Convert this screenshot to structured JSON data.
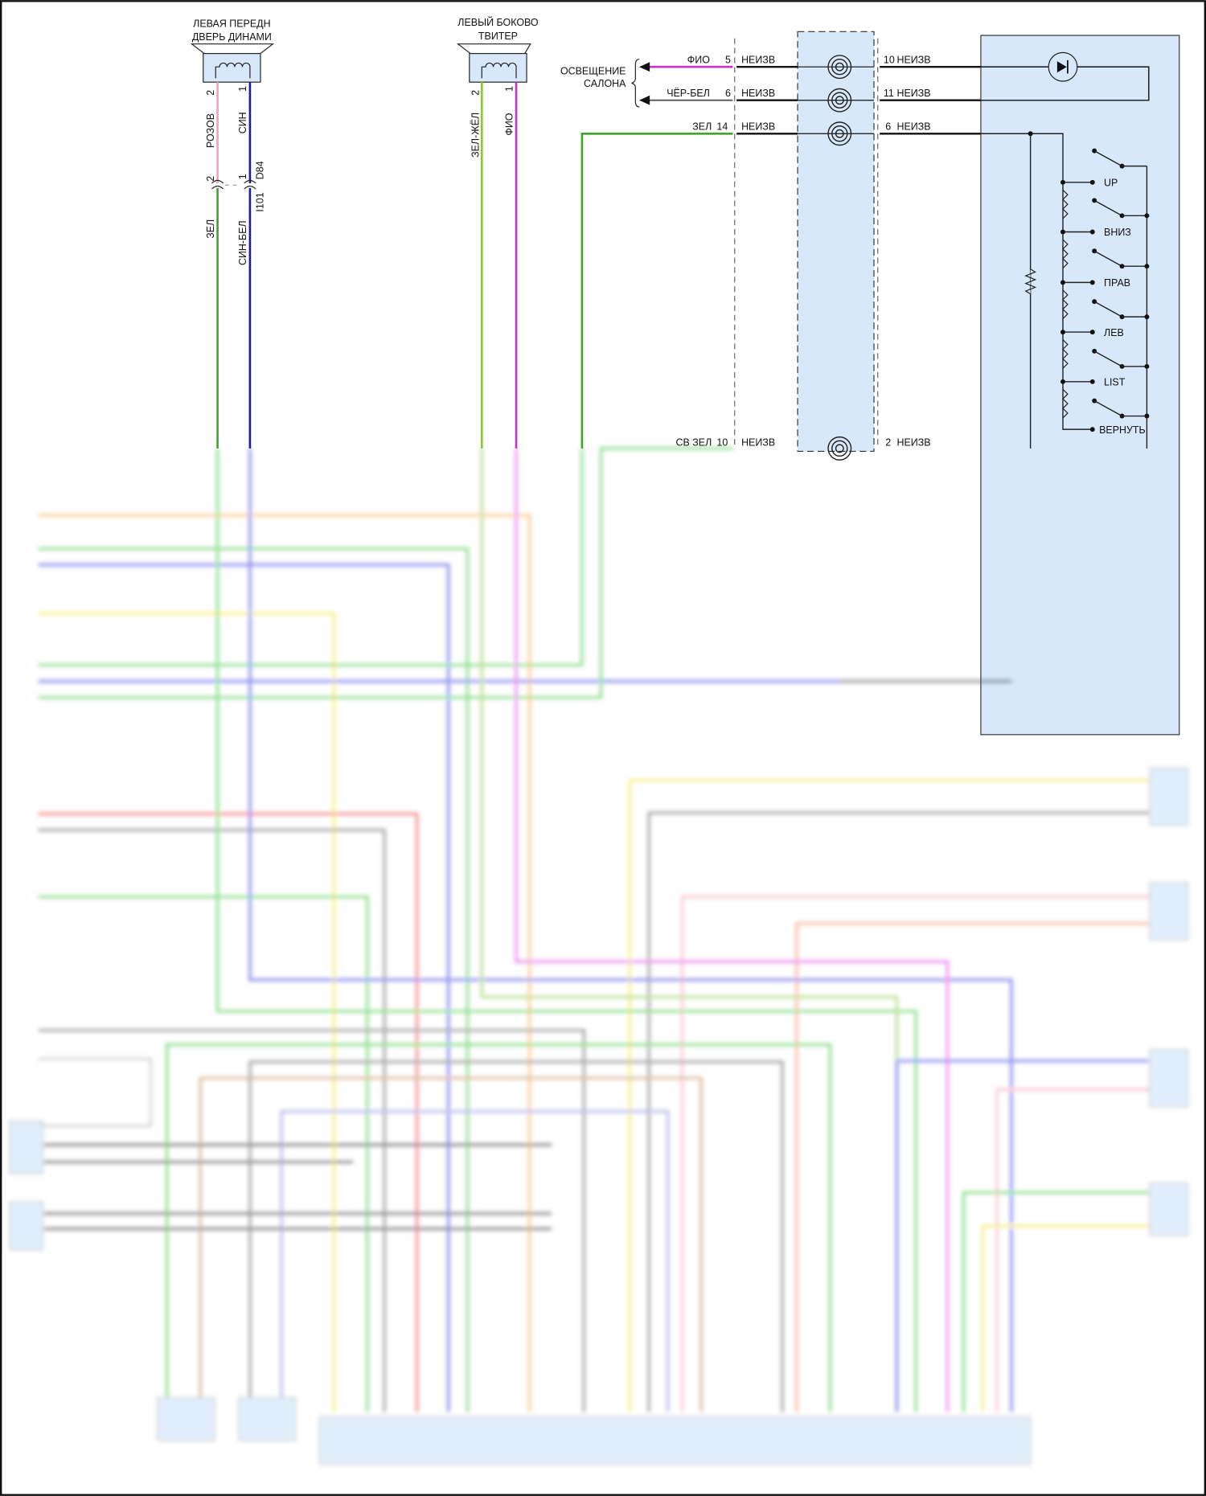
{
  "components": {
    "left_front_door_speaker": {
      "title_line1": "ЛЕВАЯ ПЕРЕДН",
      "title_line2": "ДВЕРЬ ДИНАМИ",
      "pin_a": "2",
      "pin_b": "1"
    },
    "left_side_tweeter": {
      "title_line1": "ЛЕВЫЙ БОКОВО",
      "title_line2": "ТВИТЕР",
      "pin_a": "2",
      "pin_b": "1"
    },
    "interior_lighting": {
      "line1": "ОСВЕЩЕНИЕ",
      "line2": "САЛОНА"
    },
    "steering_switch_buttons": [
      "UP",
      "ВНИЗ",
      "ПРАВ",
      "ЛЕВ",
      "LIST",
      "ВЕРНУТЬ"
    ]
  },
  "wires": {
    "speaker_upper": [
      {
        "color_label": "РОЗОВ",
        "color": "#f4a0b4"
      },
      {
        "color_label": "СИН",
        "color": "#1a1aa8"
      }
    ],
    "speaker_connector": {
      "pin_a": "2",
      "pin_b": "1",
      "id_top": "D84",
      "id_bottom": "I101"
    },
    "speaker_lower": [
      {
        "color_label": "ЗЕЛ",
        "color": "#3fa52a"
      },
      {
        "color_label": "СИН-БЕЛ",
        "color": "#1a1aa8"
      }
    ],
    "tweeter": [
      {
        "color_label": "ЗЕЛ-ЖЁЛ",
        "color": "#8cc63f"
      },
      {
        "color_label": "ФИО",
        "color": "#cc33cc"
      }
    ],
    "clockspring_rows": [
      {
        "left_color": "ФИО",
        "left_pin": "5",
        "mid_label": "НЕИЗВ",
        "right_pin": "10",
        "right_label": "НЕИЗВ",
        "color": "#cc33cc"
      },
      {
        "left_color": "ЧЁР-БЕЛ",
        "left_pin": "6",
        "mid_label": "НЕИЗВ",
        "right_pin": "11",
        "right_label": "НЕИЗВ",
        "color": "#555555"
      },
      {
        "left_color": "ЗЕЛ",
        "left_pin": "14",
        "mid_label": "НЕИЗВ",
        "right_pin": "6",
        "right_label": "НЕИЗВ",
        "color": "#3fa52a"
      },
      {
        "left_color": "СВ ЗЕЛ",
        "left_pin": "10",
        "mid_label": "НЕИЗВ",
        "right_pin": "2",
        "right_label": "НЕИЗВ",
        "color": "#7ddc6a"
      }
    ]
  },
  "colors": {
    "module_fill": "#d6e8fa",
    "outline": "#222222"
  }
}
